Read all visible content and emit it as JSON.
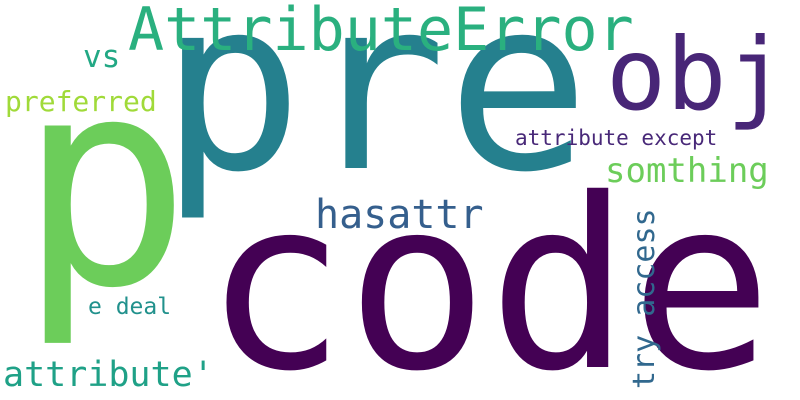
{
  "cloud": {
    "words": {
      "p": {
        "text": "p",
        "color": "#6ccd5a"
      },
      "pre": {
        "text": "pre",
        "color": "#25808e"
      },
      "code": {
        "text": "code",
        "color": "#440154"
      },
      "attrerror": {
        "text": "AttributeError",
        "color": "#2ab07f"
      },
      "obj": {
        "text": "obj",
        "color": "#482677"
      },
      "vs": {
        "text": "vs",
        "color": "#22a884"
      },
      "preferred": {
        "text": "preferred",
        "color": "#a0da39"
      },
      "attrexcept": {
        "text": "attribute except",
        "color": "#482878"
      },
      "somthing": {
        "text": "somthing",
        "color": "#6ccd5a"
      },
      "hasattr": {
        "text": "hasattr",
        "color": "#355f8d"
      },
      "tryaccess": {
        "text": "try access",
        "color": "#31688e"
      },
      "edeal": {
        "text": "e deal",
        "color": "#21918c"
      },
      "attrq": {
        "text": "attribute'",
        "color": "#1fa187"
      }
    }
  }
}
